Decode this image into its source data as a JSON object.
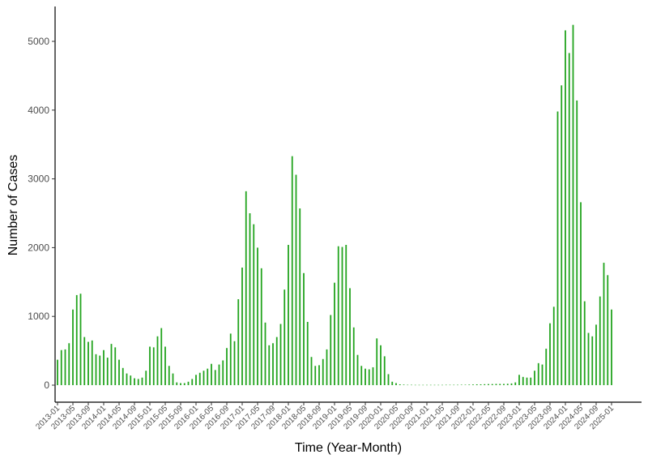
{
  "chart_data": {
    "type": "bar",
    "title": "",
    "xlabel": "Time (Year-Month)",
    "ylabel": "Number of Cases",
    "ylim": [
      0,
      5000
    ],
    "yticks": [
      0,
      1000,
      2000,
      3000,
      4000,
      5000
    ],
    "grid": false,
    "legend": "none",
    "bar_color": "#22a41e",
    "xtick_labels": [
      "2013-01",
      "2013-05",
      "2013-09",
      "2014-01",
      "2014-05",
      "2014-09",
      "2015-01",
      "2015-05",
      "2015-09",
      "2016-01",
      "2016-05",
      "2016-09",
      "2017-01",
      "2017-05",
      "2017-09",
      "2018-01",
      "2018-05",
      "2018-09",
      "2019-01",
      "2019-05",
      "2019-09",
      "2020-01",
      "2020-05",
      "2020-09",
      "2021-01",
      "2021-05",
      "2021-09",
      "2022-01",
      "2022-05",
      "2022-09",
      "2023-01",
      "2023-05",
      "2023-09",
      "2024-01",
      "2024-05",
      "2024-09",
      "2025-01"
    ],
    "series": [
      {
        "values": [
          370,
          510,
          520,
          610,
          1100,
          1310,
          1330,
          700,
          630,
          650,
          450,
          430,
          510,
          400,
          600,
          550,
          370,
          250,
          170,
          140,
          100,
          90,
          110,
          210,
          560,
          550,
          710,
          830,
          560,
          280,
          170,
          40,
          30,
          30,
          50,
          90,
          150,
          180,
          210,
          240,
          310,
          220,
          300,
          360,
          540,
          750,
          640,
          1250,
          1710,
          2820,
          2500,
          2340,
          2000,
          1700,
          910,
          580,
          610,
          700,
          890,
          1390,
          2040,
          3330,
          3060,
          2570,
          1630,
          920,
          410,
          280,
          290,
          380,
          520,
          1020,
          1490,
          2020,
          2010,
          2040,
          1410,
          840,
          440,
          280,
          240,
          230,
          260,
          680,
          580,
          420,
          160,
          50,
          30,
          12,
          8,
          5,
          5,
          4,
          4,
          4,
          4,
          4,
          4,
          4,
          4,
          5,
          5,
          5,
          5,
          6,
          6,
          8,
          10,
          12,
          12,
          14,
          16,
          16,
          18,
          18,
          18,
          20,
          25,
          40,
          150,
          120,
          110,
          110,
          210,
          320,
          300,
          530,
          900,
          1140,
          3980,
          4360,
          5160,
          4830,
          5240,
          4140,
          2660,
          1220,
          760,
          710,
          880,
          1290,
          1780,
          1600,
          1100
        ]
      }
    ]
  }
}
